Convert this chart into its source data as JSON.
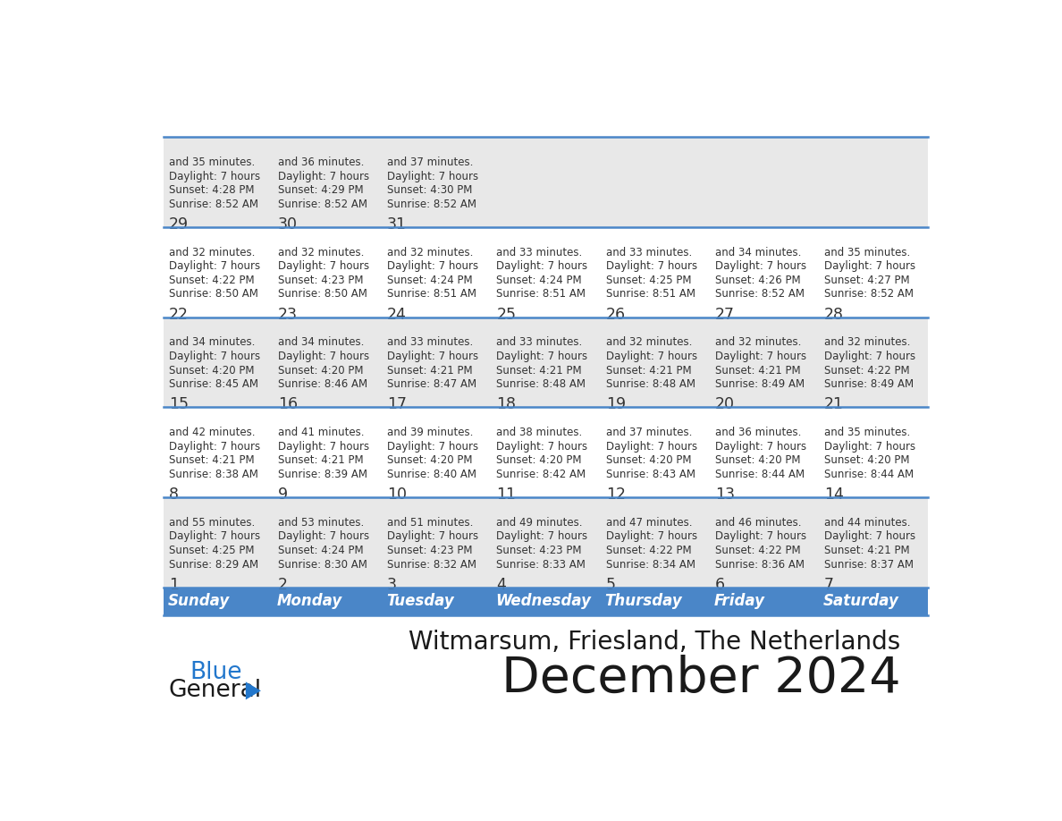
{
  "title": "December 2024",
  "subtitle": "Witmarsum, Friesland, The Netherlands",
  "header_color": "#4a86c8",
  "header_text_color": "#ffffff",
  "cell_bg_white": "#ffffff",
  "cell_bg_gray": "#e8e8e8",
  "border_color": "#4a86c8",
  "text_color": "#333333",
  "days_of_week": [
    "Sunday",
    "Monday",
    "Tuesday",
    "Wednesday",
    "Thursday",
    "Friday",
    "Saturday"
  ],
  "calendar_data": [
    [
      {
        "day": 1,
        "sunrise": "8:29 AM",
        "sunset": "4:25 PM",
        "daylight": "7 hours and 55 minutes"
      },
      {
        "day": 2,
        "sunrise": "8:30 AM",
        "sunset": "4:24 PM",
        "daylight": "7 hours and 53 minutes"
      },
      {
        "day": 3,
        "sunrise": "8:32 AM",
        "sunset": "4:23 PM",
        "daylight": "7 hours and 51 minutes"
      },
      {
        "day": 4,
        "sunrise": "8:33 AM",
        "sunset": "4:23 PM",
        "daylight": "7 hours and 49 minutes"
      },
      {
        "day": 5,
        "sunrise": "8:34 AM",
        "sunset": "4:22 PM",
        "daylight": "7 hours and 47 minutes"
      },
      {
        "day": 6,
        "sunrise": "8:36 AM",
        "sunset": "4:22 PM",
        "daylight": "7 hours and 46 minutes"
      },
      {
        "day": 7,
        "sunrise": "8:37 AM",
        "sunset": "4:21 PM",
        "daylight": "7 hours and 44 minutes"
      }
    ],
    [
      {
        "day": 8,
        "sunrise": "8:38 AM",
        "sunset": "4:21 PM",
        "daylight": "7 hours and 42 minutes"
      },
      {
        "day": 9,
        "sunrise": "8:39 AM",
        "sunset": "4:21 PM",
        "daylight": "7 hours and 41 minutes"
      },
      {
        "day": 10,
        "sunrise": "8:40 AM",
        "sunset": "4:20 PM",
        "daylight": "7 hours and 39 minutes"
      },
      {
        "day": 11,
        "sunrise": "8:42 AM",
        "sunset": "4:20 PM",
        "daylight": "7 hours and 38 minutes"
      },
      {
        "day": 12,
        "sunrise": "8:43 AM",
        "sunset": "4:20 PM",
        "daylight": "7 hours and 37 minutes"
      },
      {
        "day": 13,
        "sunrise": "8:44 AM",
        "sunset": "4:20 PM",
        "daylight": "7 hours and 36 minutes"
      },
      {
        "day": 14,
        "sunrise": "8:44 AM",
        "sunset": "4:20 PM",
        "daylight": "7 hours and 35 minutes"
      }
    ],
    [
      {
        "day": 15,
        "sunrise": "8:45 AM",
        "sunset": "4:20 PM",
        "daylight": "7 hours and 34 minutes"
      },
      {
        "day": 16,
        "sunrise": "8:46 AM",
        "sunset": "4:20 PM",
        "daylight": "7 hours and 34 minutes"
      },
      {
        "day": 17,
        "sunrise": "8:47 AM",
        "sunset": "4:21 PM",
        "daylight": "7 hours and 33 minutes"
      },
      {
        "day": 18,
        "sunrise": "8:48 AM",
        "sunset": "4:21 PM",
        "daylight": "7 hours and 33 minutes"
      },
      {
        "day": 19,
        "sunrise": "8:48 AM",
        "sunset": "4:21 PM",
        "daylight": "7 hours and 32 minutes"
      },
      {
        "day": 20,
        "sunrise": "8:49 AM",
        "sunset": "4:21 PM",
        "daylight": "7 hours and 32 minutes"
      },
      {
        "day": 21,
        "sunrise": "8:49 AM",
        "sunset": "4:22 PM",
        "daylight": "7 hours and 32 minutes"
      }
    ],
    [
      {
        "day": 22,
        "sunrise": "8:50 AM",
        "sunset": "4:22 PM",
        "daylight": "7 hours and 32 minutes"
      },
      {
        "day": 23,
        "sunrise": "8:50 AM",
        "sunset": "4:23 PM",
        "daylight": "7 hours and 32 minutes"
      },
      {
        "day": 24,
        "sunrise": "8:51 AM",
        "sunset": "4:24 PM",
        "daylight": "7 hours and 32 minutes"
      },
      {
        "day": 25,
        "sunrise": "8:51 AM",
        "sunset": "4:24 PM",
        "daylight": "7 hours and 33 minutes"
      },
      {
        "day": 26,
        "sunrise": "8:51 AM",
        "sunset": "4:25 PM",
        "daylight": "7 hours and 33 minutes"
      },
      {
        "day": 27,
        "sunrise": "8:52 AM",
        "sunset": "4:26 PM",
        "daylight": "7 hours and 34 minutes"
      },
      {
        "day": 28,
        "sunrise": "8:52 AM",
        "sunset": "4:27 PM",
        "daylight": "7 hours and 35 minutes"
      }
    ],
    [
      {
        "day": 29,
        "sunrise": "8:52 AM",
        "sunset": "4:28 PM",
        "daylight": "7 hours and 35 minutes"
      },
      {
        "day": 30,
        "sunrise": "8:52 AM",
        "sunset": "4:29 PM",
        "daylight": "7 hours and 36 minutes"
      },
      {
        "day": 31,
        "sunrise": "8:52 AM",
        "sunset": "4:30 PM",
        "daylight": "7 hours and 37 minutes"
      },
      null,
      null,
      null,
      null
    ]
  ]
}
